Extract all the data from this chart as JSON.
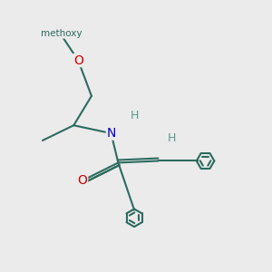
{
  "bg_color": "#ebebeb",
  "bond_color": "#2d6b5e",
  "bond_width": 1.5,
  "atom_colors": {
    "O": "#cc0000",
    "N": "#0000cc",
    "H": "#5a9a8a",
    "C": "#2d6b5e"
  },
  "figsize": [
    3.0,
    3.0
  ],
  "dpi": 100
}
